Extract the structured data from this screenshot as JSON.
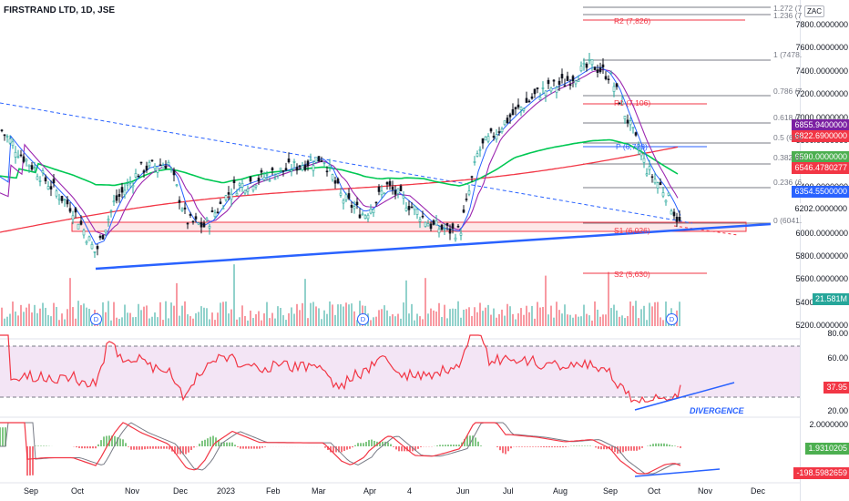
{
  "symbol_title": "FIRSTRAND LTD, 1D, JSE",
  "currency": "ZAC",
  "price_axis_ticks": [
    "7800.0000000",
    "7600.0000000",
    "7400.0000000",
    "7200.0000000",
    "7000.0000000",
    "6800.0000000",
    "6600.0000000",
    "6400.0000000",
    "6200.0000000",
    "6000.0000000",
    "5800.0000000",
    "5600.0000000",
    "5400.0000000",
    "5200.0000000"
  ],
  "price_badges": {
    "b1": {
      "text": "6855.9400000",
      "color": "#7b1fa2"
    },
    "b2": {
      "text": "6822.6900000",
      "color": "#f23645"
    },
    "b3": {
      "text": "6590.0000000",
      "color": "#4caf50"
    },
    "b4": {
      "text": "6546.4780277",
      "color": "#f23645"
    },
    "b5": {
      "text": "6354.5500000",
      "color": "#2962ff"
    },
    "b6": {
      "text": "6202.0000000",
      "color": "#ffffff"
    },
    "vol": {
      "text": "21.581M",
      "color": "#26a69a"
    }
  },
  "fib_labels": {
    "f1": "1.272 (7",
    "f2": "1.236 (7",
    "f3": "1 (7478.",
    "f4": "0.786 (7",
    "f5": "0.618 (6",
    "f6": "0.5 (675",
    "f7": "0.382 (6",
    "f8": "0.236 (6",
    "f9": "0 (6041.",
    "r2": "R2 (7,826)",
    "r1": "R1 (7,106)",
    "p": "P (6,728)",
    "s1": "S1 (6,026)",
    "s2": "S2 (5,630)"
  },
  "rsi_axis": {
    "t80": "80.00",
    "t60": "60.00",
    "t40": "40.00",
    "t20": "20.00",
    "badge": "37.95"
  },
  "rsi_annotation": "DIVERGENCE",
  "macd_axis": {
    "t2": "2.0000000",
    "badge_green": "1.9310205",
    "badge_red": "-198.5982659"
  },
  "dividend_marker": "D",
  "x_labels": [
    "Sep",
    "Oct",
    "Nov",
    "Dec",
    "2023",
    "Feb",
    "Mar",
    "Apr",
    "4",
    "Jun",
    "Jul",
    "Aug",
    "Sep",
    "Oct",
    "Nov",
    "Dec"
  ],
  "colors": {
    "up": "#26a69a",
    "down": "#131722",
    "trend": "#2962ff",
    "zone": "#f23645",
    "ma_green": "#00c853",
    "ma_red": "#f23645",
    "ma_purple": "#9c27b0",
    "ma_blue": "#2962ff",
    "rsi_fill": "#f3e5f5"
  }
}
